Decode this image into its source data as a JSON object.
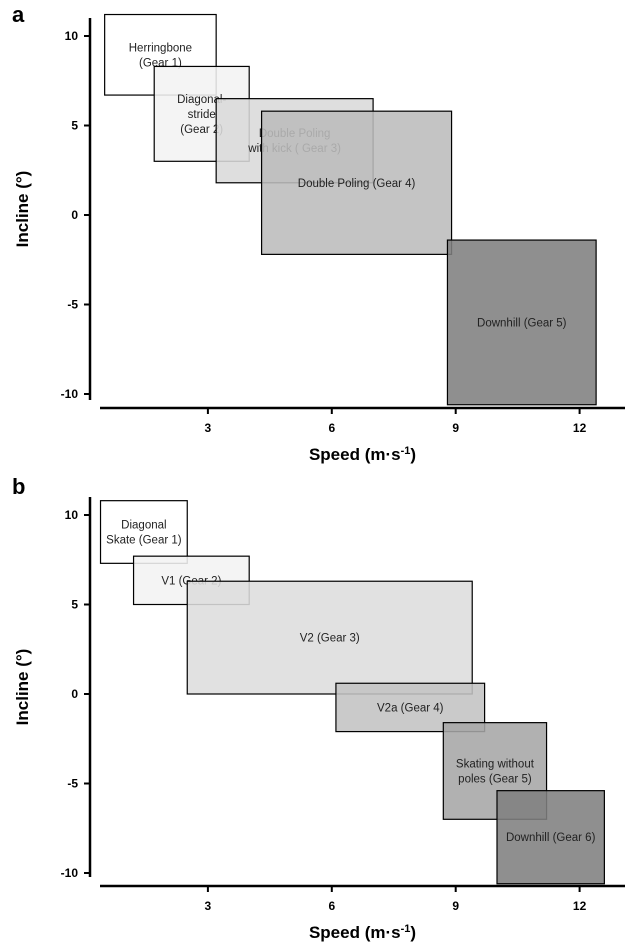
{
  "charts": [
    {
      "panel_label": "a",
      "xlabel": "Speed (m·s",
      "xlabel_sup": "-1",
      "xlabel_close": ")",
      "ylabel": "Incline (°)",
      "x_ticks": [
        3,
        6,
        9,
        12
      ],
      "y_ticks": [
        10,
        5,
        0,
        -5,
        -10
      ],
      "regions": [
        {
          "label": [
            "Herringbone",
            "(Gear 1)"
          ],
          "x": [
            0.5,
            3.2
          ],
          "y": [
            6.7,
            11.2
          ],
          "fill": "#ffffff"
        },
        {
          "label": [
            "Diagonal-",
            "stride",
            "(Gear 2)"
          ],
          "x": [
            1.7,
            4.0
          ],
          "y": [
            3.0,
            8.3
          ],
          "fill": "#f2f2f2"
        },
        {
          "label": [
            "Double Poling",
            "with kick ( Gear 3)"
          ],
          "x": [
            3.2,
            7.0
          ],
          "y": [
            1.8,
            6.5
          ],
          "fill": "#d9d9d9"
        },
        {
          "label": [
            "Double Poling (Gear 4)"
          ],
          "x": [
            4.3,
            8.9
          ],
          "y": [
            -2.2,
            5.8
          ],
          "fill": "#bcbcbc"
        },
        {
          "label": [
            "Downhill (Gear 5)"
          ],
          "x": [
            8.8,
            12.4
          ],
          "y": [
            -10.6,
            -1.4
          ],
          "fill": "#7f7f7f"
        }
      ]
    },
    {
      "panel_label": "b",
      "xlabel": "Speed (m·s",
      "xlabel_sup": "-1",
      "xlabel_close": ")",
      "ylabel": "Incline (°)",
      "x_ticks": [
        3,
        6,
        9,
        12
      ],
      "y_ticks": [
        10,
        5,
        0,
        -5,
        -10
      ],
      "regions": [
        {
          "label": [
            "Diagonal",
            "Skate (Gear 1)"
          ],
          "x": [
            0.4,
            2.5
          ],
          "y": [
            7.3,
            10.8
          ],
          "fill": "#ffffff"
        },
        {
          "label": [
            "V1 (Gear 2)"
          ],
          "x": [
            1.2,
            4.0
          ],
          "y": [
            5.0,
            7.7
          ],
          "fill": "#f2f2f2"
        },
        {
          "label": [
            "V2 (Gear 3)"
          ],
          "x": [
            2.5,
            9.4
          ],
          "y": [
            0.0,
            6.3
          ],
          "fill": "#dddddd"
        },
        {
          "label": [
            "V2a (Gear 4)"
          ],
          "x": [
            6.1,
            9.7
          ],
          "y": [
            -2.1,
            0.6
          ],
          "fill": "#c3c3c3"
        },
        {
          "label": [
            "Skating without",
            "poles (Gear 5)"
          ],
          "x": [
            8.7,
            11.2
          ],
          "y": [
            -7.0,
            -1.6
          ],
          "fill": "#a6a6a6"
        },
        {
          "label": [
            "Downhill (Gear 6)"
          ],
          "x": [
            10.0,
            12.6
          ],
          "y": [
            -10.6,
            -5.4
          ],
          "fill": "#7f7f7f"
        }
      ]
    }
  ],
  "chart_data": [
    {
      "type": "range-rectangles",
      "panel": "a",
      "xlabel": "Speed (m·s-1)",
      "ylabel": "Incline (°)",
      "xlim": [
        0,
        13
      ],
      "ylim": [
        -10.6,
        11.2
      ],
      "series": [
        {
          "name": "Herringbone (Gear 1)",
          "speed": [
            0.5,
            3.2
          ],
          "incline": [
            6.7,
            11.2
          ]
        },
        {
          "name": "Diagonal-stride (Gear 2)",
          "speed": [
            1.7,
            4.0
          ],
          "incline": [
            3.0,
            8.3
          ]
        },
        {
          "name": "Double Poling with kick ( Gear 3)",
          "speed": [
            3.2,
            7.0
          ],
          "incline": [
            1.8,
            6.5
          ]
        },
        {
          "name": "Double Poling (Gear 4)",
          "speed": [
            4.3,
            8.9
          ],
          "incline": [
            -2.2,
            5.8
          ]
        },
        {
          "name": "Downhill (Gear 5)",
          "speed": [
            8.8,
            12.4
          ],
          "incline": [
            -10.6,
            -1.4
          ]
        }
      ]
    },
    {
      "type": "range-rectangles",
      "panel": "b",
      "xlabel": "Speed (m·s-1)",
      "ylabel": "Incline (°)",
      "xlim": [
        0,
        13
      ],
      "ylim": [
        -10.6,
        11.2
      ],
      "series": [
        {
          "name": "Diagonal Skate (Gear 1)",
          "speed": [
            0.4,
            2.5
          ],
          "incline": [
            7.3,
            10.8
          ]
        },
        {
          "name": "V1 (Gear 2)",
          "speed": [
            1.2,
            4.0
          ],
          "incline": [
            5.0,
            7.7
          ]
        },
        {
          "name": "V2 (Gear 3)",
          "speed": [
            2.5,
            9.4
          ],
          "incline": [
            0.0,
            6.3
          ]
        },
        {
          "name": "V2a (Gear 4)",
          "speed": [
            6.1,
            9.7
          ],
          "incline": [
            -2.1,
            0.6
          ]
        },
        {
          "name": "Skating without poles (Gear 5)",
          "speed": [
            8.7,
            11.2
          ],
          "incline": [
            -7.0,
            -1.6
          ]
        },
        {
          "name": "Downhill (Gear 6)",
          "speed": [
            10.0,
            12.6
          ],
          "incline": [
            -10.6,
            -5.4
          ]
        }
      ]
    }
  ]
}
